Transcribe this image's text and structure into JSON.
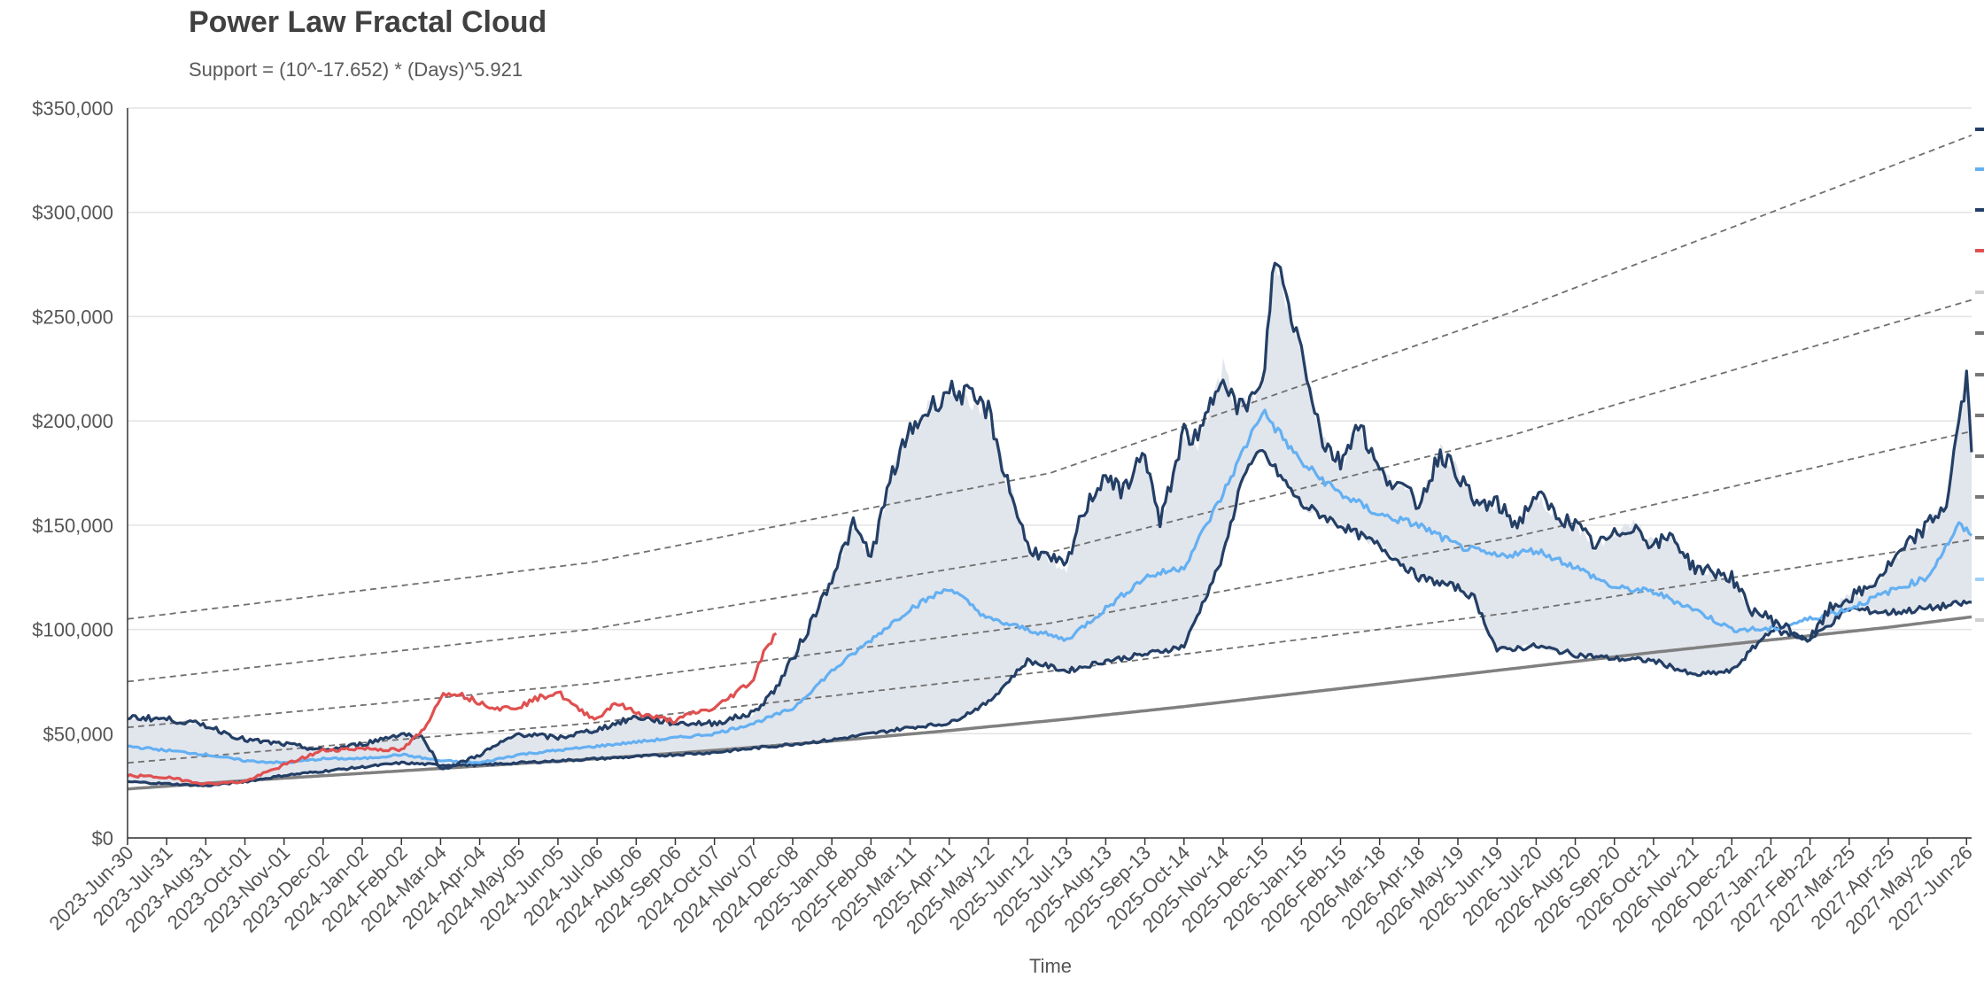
{
  "chart_data": {
    "type": "line",
    "title": "Power Law Fractal Cloud",
    "subtitle": "Support = (10^-17.652) * (Days)^5.921",
    "xlabel": "Time",
    "ylabel": "",
    "ylim": [
      0,
      350000
    ],
    "y_ticks": [
      "$0",
      "$50,000",
      "$100,000",
      "$150,000",
      "$200,000",
      "$250,000",
      "$300,000",
      "$350,000"
    ],
    "x_ticks": [
      "2023-Jun-30",
      "2023-Jul-31",
      "2023-Aug-31",
      "2023-Oct-01",
      "2023-Nov-01",
      "2023-Dec-02",
      "2024-Jan-02",
      "2024-Feb-02",
      "2024-Mar-04",
      "2024-Apr-04",
      "2024-May-05",
      "2024-Jun-05",
      "2024-Jul-06",
      "2024-Aug-06",
      "2024-Sep-06",
      "2024-Oct-07",
      "2024-Nov-07",
      "2024-Dec-08",
      "2025-Jan-08",
      "2025-Feb-08",
      "2025-Mar-11",
      "2025-Apr-11",
      "2025-May-12",
      "2025-Jun-12",
      "2025-Jul-13",
      "2025-Aug-13",
      "2025-Sep-13",
      "2025-Oct-14",
      "2025-Nov-14",
      "2025-Dec-15",
      "2026-Jan-15",
      "2026-Feb-15",
      "2026-Mar-18",
      "2026-Apr-18",
      "2026-May-19",
      "2026-Jun-19",
      "2026-Jul-20",
      "2026-Aug-20",
      "2026-Sep-20",
      "2026-Oct-21",
      "2026-Nov-21",
      "2026-Dec-22",
      "2027-Jan-22",
      "2027-Feb-22",
      "2027-Mar-25",
      "2027-Apr-25",
      "2027-May-26",
      "2027-Jun-26"
    ],
    "grid": true,
    "colors": {
      "upper": "#243f66",
      "median": "#64b0f2",
      "lower": "#243f66",
      "actual": "#e05050",
      "support": "#808080",
      "bands": "#707070",
      "cloud": "#dfe4eb"
    },
    "series": [
      {
        "key": "support",
        "x": [
          "2023-Jun-30",
          "2023-Oct-01",
          "2024-Jan-02",
          "2024-Apr-04",
          "2024-Jul-06",
          "2024-Oct-07",
          "2025-Jan-08",
          "2025-Apr-11",
          "2025-Jul-13",
          "2025-Oct-14",
          "2026-Jan-15",
          "2026-Apr-18",
          "2026-Jul-20",
          "2026-Oct-21",
          "2027-Jan-22",
          "2027-Apr-25",
          "2027-Jun-30"
        ],
        "values": [
          23500,
          27500,
          31000,
          34500,
          38000,
          42000,
          46500,
          51500,
          57000,
          63000,
          69500,
          76000,
          82500,
          89000,
          95000,
          101000,
          106000
        ]
      },
      {
        "key": "band-1",
        "x": [
          "2023-Jun-30",
          "2024-Jun-30",
          "2025-Jun-30",
          "2026-Jun-30",
          "2027-Jun-30"
        ],
        "values": [
          36000,
          55000,
          80000,
          108000,
          143000
        ]
      },
      {
        "key": "band-2",
        "x": [
          "2023-Jun-30",
          "2024-Jun-30",
          "2025-Jun-30",
          "2026-Jun-30",
          "2027-Jun-30"
        ],
        "values": [
          53000,
          74000,
          103000,
          144000,
          195000
        ]
      },
      {
        "key": "band-3",
        "x": [
          "2023-Jun-30",
          "2024-Jun-30",
          "2025-Jun-30",
          "2026-Jun-30",
          "2027-Jun-30"
        ],
        "values": [
          75000,
          100000,
          137000,
          193000,
          258000
        ]
      },
      {
        "key": "band-4",
        "x": [
          "2023-Jun-30",
          "2024-Jun-30",
          "2025-Jun-30",
          "2026-Jun-30",
          "2027-Jun-30"
        ],
        "values": [
          105000,
          132000,
          175000,
          252000,
          337000
        ]
      },
      {
        "key": "upper",
        "x": [
          "2023-Jun-30",
          "2023-Jul-31",
          "2023-Aug-31",
          "2023-Oct-01",
          "2023-Nov-01",
          "2023-Dec-02",
          "2024-Jan-02",
          "2024-Feb-02",
          "2024-Feb-20",
          "2024-Mar-04",
          "2024-Mar-20",
          "2024-Apr-04",
          "2024-May-05",
          "2024-Jun-05",
          "2024-Jul-06",
          "2024-Aug-06",
          "2024-Sep-06",
          "2024-Oct-07",
          "2024-Nov-07",
          "2024-Nov-25",
          "2024-Dec-08",
          "2024-Dec-20",
          "2025-Jan-08",
          "2025-Jan-25",
          "2025-Feb-08",
          "2025-Feb-25",
          "2025-Mar-11",
          "2025-Mar-25",
          "2025-Apr-11",
          "2025-Apr-25",
          "2025-May-12",
          "2025-May-25",
          "2025-Jun-12",
          "2025-Jun-25",
          "2025-Jul-13",
          "2025-Jul-25",
          "2025-Aug-13",
          "2025-Aug-25",
          "2025-Sep-13",
          "2025-Sep-25",
          "2025-Oct-14",
          "2025-Oct-25",
          "2025-Nov-14",
          "2025-Nov-25",
          "2025-Dec-15",
          "2025-Dec-25",
          "2026-Jan-05",
          "2026-Jan-15",
          "2026-Feb-01",
          "2026-Feb-15",
          "2026-Mar-01",
          "2026-Mar-18",
          "2026-Apr-01",
          "2026-Apr-18",
          "2026-May-05",
          "2026-May-19",
          "2026-Jun-01",
          "2026-Jun-19",
          "2026-Jul-05",
          "2026-Jul-20",
          "2026-Aug-05",
          "2026-Aug-20",
          "2026-Sep-05",
          "2026-Sep-20",
          "2026-Oct-05",
          "2026-Oct-21",
          "2026-Nov-05",
          "2026-Nov-21",
          "2026-Dec-05",
          "2026-Dec-22",
          "2027-Jan-05",
          "2027-Jan-22",
          "2027-Feb-05",
          "2027-Feb-22",
          "2027-Mar-10",
          "2027-Mar-25",
          "2027-Apr-10",
          "2027-Apr-25",
          "2027-May-10",
          "2027-May-26",
          "2027-Jun-10",
          "2027-Jun-20",
          "2027-Jun-26",
          "2027-Jun-30"
        ],
        "values": [
          58000,
          57000,
          54000,
          47000,
          45000,
          42000,
          45000,
          50000,
          48000,
          33000,
          36000,
          40000,
          50000,
          48000,
          52000,
          58000,
          55000,
          55000,
          60000,
          72000,
          86000,
          100000,
          125000,
          150000,
          135000,
          175000,
          195000,
          205000,
          215000,
          212000,
          205000,
          175000,
          140000,
          135000,
          130000,
          155000,
          175000,
          165000,
          185000,
          150000,
          195000,
          190000,
          225000,
          205000,
          215000,
          280000,
          255000,
          235000,
          190000,
          180000,
          200000,
          175000,
          170000,
          160000,
          185000,
          175000,
          160000,
          160000,
          150000,
          165000,
          155000,
          150000,
          140000,
          145000,
          150000,
          140000,
          145000,
          130000,
          128000,
          125000,
          110000,
          105000,
          100000,
          95000,
          110000,
          115000,
          120000,
          130000,
          140000,
          150000,
          160000,
          200000,
          220000,
          185000
        ]
      },
      {
        "key": "median",
        "x": [
          "2023-Jun-30",
          "2023-Jul-31",
          "2023-Aug-31",
          "2023-Oct-01",
          "2023-Nov-01",
          "2023-Dec-02",
          "2024-Jan-02",
          "2024-Feb-02",
          "2024-Mar-04",
          "2024-Apr-04",
          "2024-May-05",
          "2024-Jun-05",
          "2024-Jul-06",
          "2024-Aug-06",
          "2024-Sep-06",
          "2024-Oct-07",
          "2024-Nov-07",
          "2024-Dec-08",
          "2025-Jan-08",
          "2025-Feb-08",
          "2025-Mar-11",
          "2025-Apr-11",
          "2025-May-12",
          "2025-Jun-12",
          "2025-Jul-13",
          "2025-Aug-13",
          "2025-Sep-13",
          "2025-Oct-14",
          "2025-Nov-14",
          "2025-Dec-15",
          "2026-Jan-15",
          "2026-Feb-15",
          "2026-Mar-18",
          "2026-Apr-18",
          "2026-May-19",
          "2026-Jun-19",
          "2026-Jul-20",
          "2026-Aug-20",
          "2026-Sep-20",
          "2026-Oct-21",
          "2026-Nov-21",
          "2026-Dec-22",
          "2027-Jan-22",
          "2027-Feb-22",
          "2027-Mar-25",
          "2027-Apr-25",
          "2027-May-26",
          "2027-Jun-20",
          "2027-Jun-30"
        ],
        "values": [
          44000,
          42000,
          40000,
          37000,
          36000,
          38000,
          38000,
          40000,
          37000,
          36000,
          40000,
          42000,
          44000,
          46000,
          48000,
          50000,
          55000,
          62000,
          80000,
          95000,
          110000,
          120000,
          105000,
          100000,
          95000,
          110000,
          125000,
          130000,
          165000,
          205000,
          180000,
          165000,
          155000,
          150000,
          140000,
          135000,
          138000,
          130000,
          120000,
          118000,
          110000,
          100000,
          100000,
          105000,
          110000,
          118000,
          125000,
          150000,
          145000
        ]
      },
      {
        "key": "lower",
        "x": [
          "2023-Jun-30",
          "2023-Jul-31",
          "2023-Aug-31",
          "2023-Oct-01",
          "2023-Nov-01",
          "2023-Dec-02",
          "2024-Jan-02",
          "2024-Feb-02",
          "2024-Mar-04",
          "2024-Apr-04",
          "2024-May-05",
          "2024-Jun-05",
          "2024-Jul-06",
          "2024-Aug-06",
          "2024-Sep-06",
          "2024-Oct-07",
          "2024-Nov-07",
          "2024-Dec-08",
          "2025-Jan-08",
          "2025-Feb-08",
          "2025-Mar-11",
          "2025-Apr-11",
          "2025-May-12",
          "2025-Jun-12",
          "2025-Jul-13",
          "2025-Aug-13",
          "2025-Sep-13",
          "2025-Oct-14",
          "2025-Nov-14",
          "2025-Nov-30",
          "2025-Dec-15",
          "2026-Jan-15",
          "2026-Feb-15",
          "2026-Mar-18",
          "2026-Apr-18",
          "2026-May-19",
          "2026-Jun-01",
          "2026-Jun-19",
          "2026-Jul-20",
          "2026-Aug-20",
          "2026-Sep-20",
          "2026-Oct-21",
          "2026-Nov-05",
          "2026-Nov-21",
          "2026-Dec-22",
          "2027-Jan-22",
          "2027-Feb-22",
          "2027-Mar-25",
          "2027-Apr-25",
          "2027-May-26",
          "2027-Jun-30"
        ],
        "values": [
          27000,
          26000,
          25000,
          27000,
          30000,
          32000,
          34000,
          36000,
          35000,
          35000,
          36000,
          37000,
          38000,
          39000,
          40000,
          41000,
          43000,
          45000,
          47000,
          50000,
          53000,
          55000,
          65000,
          85000,
          80000,
          85000,
          88000,
          92000,
          135000,
          175000,
          185000,
          160000,
          150000,
          140000,
          125000,
          120000,
          115000,
          90000,
          92000,
          88000,
          86000,
          85000,
          82000,
          78000,
          80000,
          100000,
          95000,
          110000,
          108000,
          110000,
          113000
        ]
      },
      {
        "key": "actual",
        "x": [
          "2023-Jun-30",
          "2023-Jul-31",
          "2023-Aug-31",
          "2023-Oct-01",
          "2023-Nov-01",
          "2023-Dec-02",
          "2024-Jan-02",
          "2024-Feb-02",
          "2024-Feb-20",
          "2024-Mar-04",
          "2024-Mar-15",
          "2024-Apr-04",
          "2024-Apr-20",
          "2024-May-05",
          "2024-May-20",
          "2024-Jun-05",
          "2024-Jun-20",
          "2024-Jul-06",
          "2024-Jul-20",
          "2024-Aug-06",
          "2024-Aug-20",
          "2024-Sep-06",
          "2024-Sep-20",
          "2024-Oct-07",
          "2024-Oct-20",
          "2024-Nov-07",
          "2024-Nov-15",
          "2024-Nov-25"
        ],
        "values": [
          30000,
          29000,
          26000,
          27000,
          35000,
          42000,
          43000,
          42000,
          52000,
          68000,
          70000,
          65000,
          62000,
          63000,
          67000,
          70000,
          62000,
          57000,
          65000,
          60000,
          58000,
          56000,
          60000,
          62000,
          68000,
          76000,
          90000,
          98000
        ]
      }
    ]
  }
}
